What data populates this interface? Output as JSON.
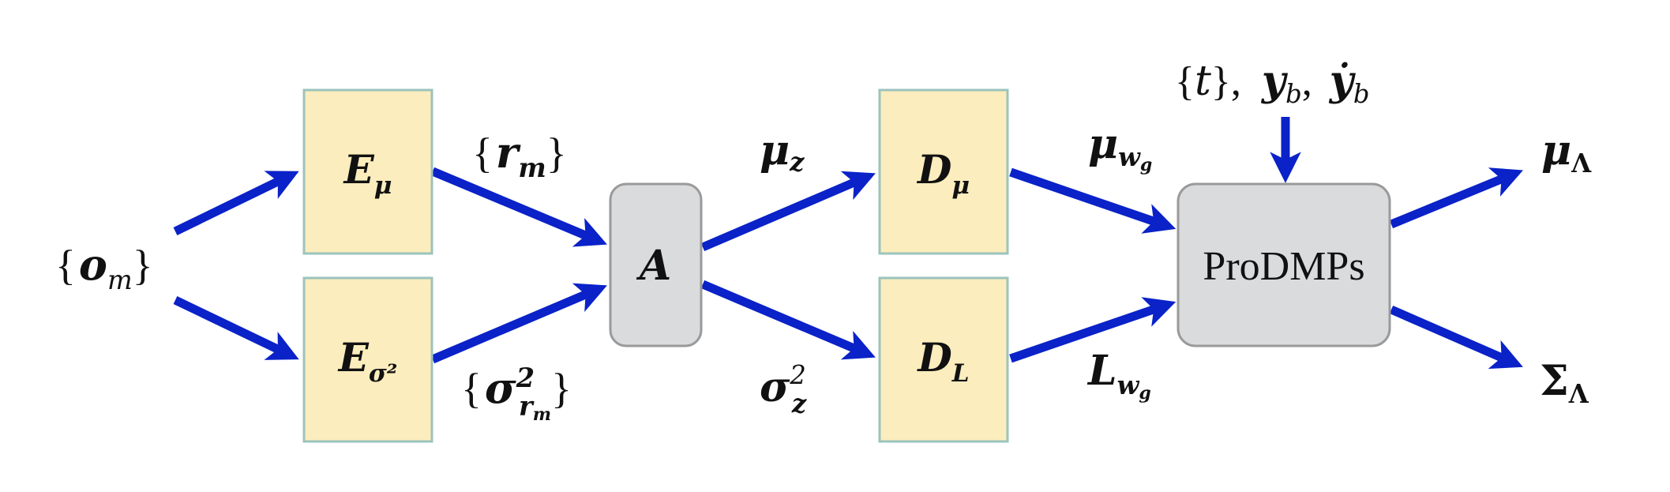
{
  "colors": {
    "encoder_fill": "#fbedbd",
    "encoder_stroke": "#9cc3bd",
    "node_fill": "#dadbdd",
    "node_stroke": "#9a9a9a",
    "arrow": "#0a22c8",
    "text": "#111111"
  },
  "inputs": {
    "observations": {
      "open": "{",
      "base": "o",
      "sub": "m",
      "close": "}"
    }
  },
  "blocks": {
    "e_mu": {
      "base": "E",
      "sub": "μ"
    },
    "e_sigma": {
      "base": "E",
      "sub": "σ²"
    },
    "aggregator": {
      "base": "A"
    },
    "d_mu": {
      "base": "D",
      "sub": "μ"
    },
    "d_l": {
      "base": "D",
      "sub": "L"
    },
    "prodmps": {
      "label": "ProDMPs"
    }
  },
  "edge_labels": {
    "r_m": {
      "open": "{",
      "base": "r",
      "sub": "m",
      "close": "}"
    },
    "sigma_r_m": {
      "open": "{",
      "base": "σ",
      "sup": "2",
      "sub": "r",
      "subsub": "m",
      "close": "}"
    },
    "mu_z": {
      "base": "μ",
      "sub": "z"
    },
    "sigma_z": {
      "base": "σ",
      "sup": "2",
      "sub": "z"
    },
    "mu_wg": {
      "base": "μ",
      "sub": "w",
      "subsub": "g"
    },
    "l_wg": {
      "base": "L",
      "sub": "w",
      "subsub": "g"
    },
    "conditions": {
      "t_open": "{",
      "t": "t",
      "t_close": "},",
      "yb": "y",
      "yb_sub": "b",
      "sep": ",",
      "ybdot": "ẏ",
      "ybdot_sub": "b"
    }
  },
  "outputs": {
    "mu_lambda": {
      "base": "μ",
      "sub": "Λ"
    },
    "sigma_lambda": {
      "base": "Σ",
      "sub": "Λ"
    }
  }
}
